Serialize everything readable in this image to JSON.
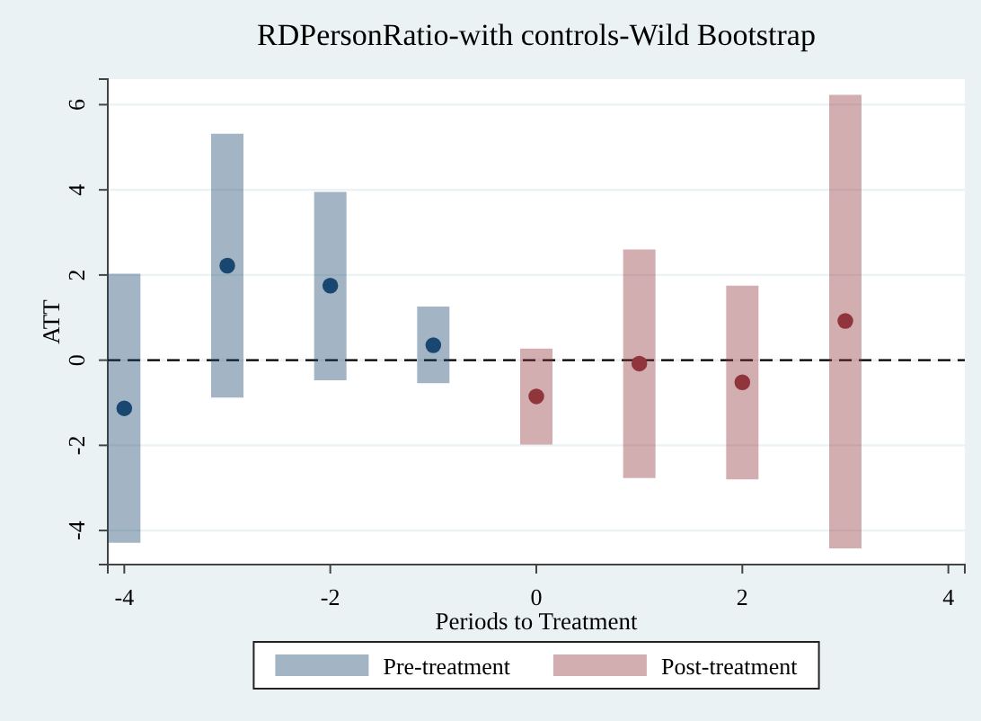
{
  "chart_data": {
    "type": "scatter",
    "title": "RDPersonRatio-with controls-Wild Bootstrap",
    "xlabel": "Periods to Treatment",
    "ylabel": "ATT",
    "xlim": [
      -4.16,
      4.16
    ],
    "xticks": [
      -4,
      -2,
      0,
      2,
      4
    ],
    "ylim": [
      -4.8,
      6.6
    ],
    "yticks": [
      -4,
      -2,
      0,
      2,
      4,
      6
    ],
    "grid": "y",
    "legend": "bottom",
    "marker": "circle",
    "ref_lines": [
      {
        "axis": "y",
        "value": 0,
        "label": null,
        "color": "#000000",
        "line_style": "dashed"
      }
    ],
    "series": [
      {
        "name": "Pre-treatment",
        "color": "#1a476f",
        "x": [
          -4,
          -3,
          -2,
          -1
        ],
        "values": [
          -1.13,
          2.22,
          1.75,
          0.35
        ],
        "errors": [
          [
            -4.29,
            2.03
          ],
          [
            -0.88,
            5.32
          ],
          [
            -0.47,
            3.95
          ],
          [
            -0.54,
            1.26
          ]
        ]
      },
      {
        "name": "Post-treatment",
        "color": "#90353b",
        "x": [
          0,
          1,
          2,
          3
        ],
        "values": [
          -0.85,
          -0.08,
          -0.52,
          0.92
        ],
        "errors": [
          [
            -1.98,
            0.27
          ],
          [
            -2.77,
            2.6
          ],
          [
            -2.8,
            1.75
          ],
          [
            -4.42,
            6.23
          ]
        ]
      }
    ]
  }
}
